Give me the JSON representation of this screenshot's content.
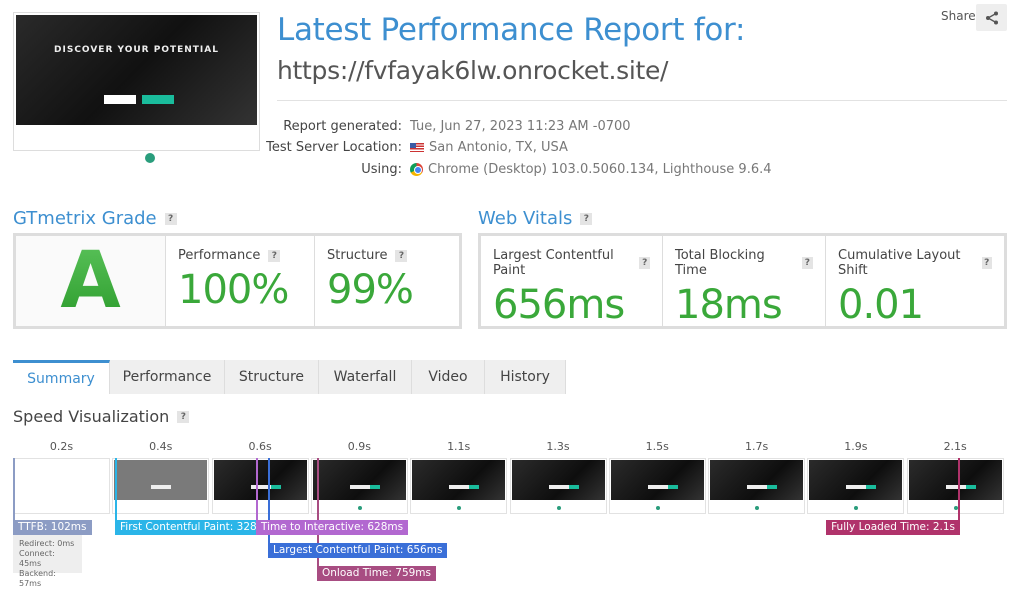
{
  "thumbnail": {
    "headline": "DISCOVER YOUR POTENTIAL"
  },
  "header": {
    "title": "Latest Performance Report for:",
    "url": "https://fvfayak6lw.onrocket.site/",
    "share_label": "Share"
  },
  "info": [
    {
      "label": "Report generated:",
      "value": "Tue, Jun 27, 2023 11:23 AM -0700",
      "icon": ""
    },
    {
      "label": "Test Server Location:",
      "value": "San Antonio, TX, USA",
      "icon": "us-flag-icon"
    },
    {
      "label": "Using:",
      "value": "Chrome (Desktop) 103.0.5060.134, Lighthouse 9.6.4",
      "icon": "chrome-icon"
    }
  ],
  "grade": {
    "heading": "GTmetrix Grade",
    "help": "?",
    "letter": "A",
    "performance_label": "Performance",
    "performance": "100%",
    "structure_label": "Structure",
    "structure": "99%"
  },
  "vitals": {
    "heading": "Web Vitals",
    "help": "?",
    "lcp_label": "Largest Contentful Paint",
    "lcp": "656ms",
    "tbt_label": "Total Blocking Time",
    "tbt": "18ms",
    "cls_label": "Cumulative Layout Shift",
    "cls": "0.01"
  },
  "colors": {
    "accent": "#3d8fd0",
    "good": "#3aa83a",
    "ttfb": "#8c9cc4",
    "fcp": "#2bb5e8",
    "tti": "#b268d0",
    "lcp": "#3a6fd8",
    "onload": "#a84d82",
    "fully_loaded": "#b0336b"
  },
  "tabs": [
    "Summary",
    "Performance",
    "Structure",
    "Waterfall",
    "Video",
    "History"
  ],
  "speed": {
    "heading": "Speed Visualization",
    "help": "?",
    "times": [
      "0.2s",
      "0.4s",
      "0.6s",
      "0.9s",
      "1.1s",
      "1.3s",
      "1.5s",
      "1.7s",
      "1.9s",
      "2.1s"
    ],
    "ttfb": "TTFB: 102ms",
    "redirect": "Redirect: 0ms",
    "connect": "Connect: 45ms",
    "backend": "Backend: 57ms",
    "fcp": "First Contentful Paint: 328ms",
    "tti": "Time to Interactive: 628ms",
    "lcp": "Largest Contentful Paint: 656ms",
    "onload": "Onload Time: 759ms",
    "fully_loaded": "Fully Loaded Time: 2.1s"
  }
}
